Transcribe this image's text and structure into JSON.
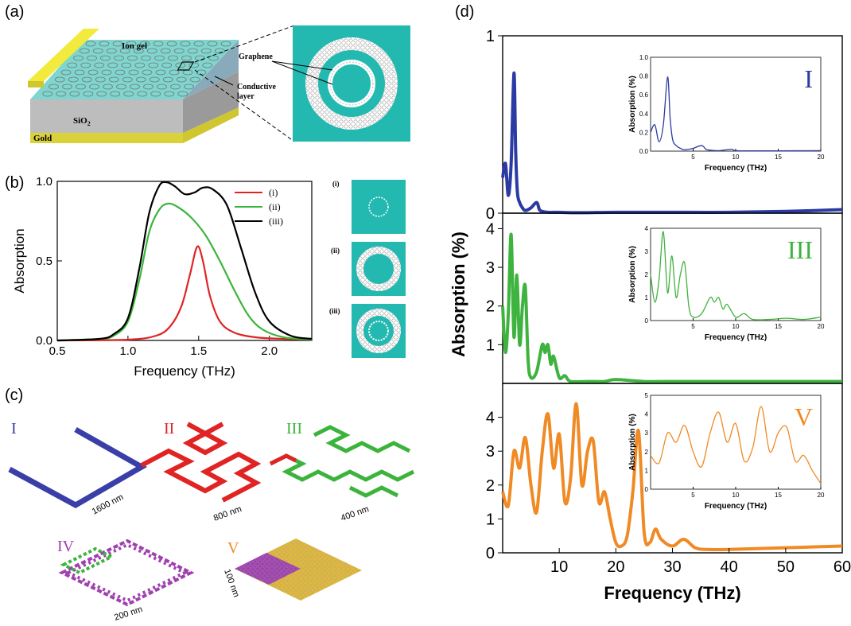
{
  "panels": {
    "a": {
      "label": "(a)",
      "layers": {
        "top": "Ion gel",
        "mid": "SiO",
        "mid_sub": "2",
        "bottom": "Gold"
      },
      "callouts": {
        "graphene": "Graphene",
        "conductive1": "Conductive",
        "conductive2": "layer"
      },
      "colors": {
        "teal": "#23b9b0",
        "gold": "#e8e040",
        "gray": "#c9c9c9"
      }
    },
    "b": {
      "label": "(b)",
      "thumb_labels": [
        "(i)",
        "(ii)",
        "(iii)"
      ],
      "chart_data": {
        "type": "line",
        "xlabel": "Frequency (THz)",
        "ylabel": "Absorption",
        "xlim": [
          0.5,
          2.3
        ],
        "ylim": [
          0,
          1.0
        ],
        "xticks": [
          "0.5",
          "1.0",
          "1.5",
          "2.0"
        ],
        "yticks": [
          "0.0",
          "0.5",
          "1.0"
        ],
        "legend_position": "top-right",
        "series": [
          {
            "name": "(i)",
            "color": "#e02424",
            "x": [
              0.5,
              1.0,
              1.2,
              1.3,
              1.38,
              1.44,
              1.49,
              1.53,
              1.58,
              1.65,
              1.75,
              1.9,
              2.1,
              2.3
            ],
            "y": [
              0.0,
              0.005,
              0.03,
              0.09,
              0.22,
              0.42,
              0.59,
              0.5,
              0.28,
              0.12,
              0.05,
              0.02,
              0.01,
              0.005
            ]
          },
          {
            "name": "(ii)",
            "color": "#3cb43c",
            "x": [
              0.5,
              0.8,
              0.9,
              1.0,
              1.08,
              1.15,
              1.22,
              1.28,
              1.35,
              1.45,
              1.55,
              1.65,
              1.75,
              1.85,
              1.95,
              2.1,
              2.3
            ],
            "y": [
              0.0,
              0.01,
              0.03,
              0.12,
              0.38,
              0.68,
              0.82,
              0.86,
              0.84,
              0.77,
              0.66,
              0.5,
              0.32,
              0.16,
              0.07,
              0.02,
              0.005
            ]
          },
          {
            "name": "(iii)",
            "color": "#000000",
            "x": [
              0.5,
              0.8,
              0.9,
              1.0,
              1.08,
              1.15,
              1.22,
              1.27,
              1.33,
              1.4,
              1.47,
              1.53,
              1.6,
              1.7,
              1.8,
              1.9,
              2.0,
              2.15,
              2.3
            ],
            "y": [
              0.0,
              0.01,
              0.04,
              0.14,
              0.45,
              0.8,
              0.97,
              0.995,
              0.97,
              0.92,
              0.93,
              0.96,
              0.95,
              0.85,
              0.58,
              0.3,
              0.12,
              0.03,
              0.01
            ]
          }
        ]
      }
    },
    "c": {
      "label": "(c)",
      "items": [
        {
          "roman": "I",
          "color": "#3a3fa8",
          "dim": "1600 nm"
        },
        {
          "roman": "II",
          "color": "#e02424",
          "dim": "800 nm"
        },
        {
          "roman": "III",
          "color": "#3cb43c",
          "dim": "400 nm"
        },
        {
          "roman": "IV",
          "color": "#a040b0",
          "dim": "200 nm"
        },
        {
          "roman": "V",
          "color": "#f08a24",
          "dim": "100 nm"
        }
      ]
    },
    "d": {
      "label": "(d)",
      "ylabel": "Absorption (%)",
      "xlabel": "Frequency (THz)",
      "xticks": [
        "10",
        "20",
        "30",
        "40",
        "50",
        "60"
      ],
      "chart_data": [
        {
          "type": "line",
          "series_label": "I",
          "color": "#2b3ba3",
          "xlim": [
            0,
            60
          ],
          "ylim": [
            0,
            1
          ],
          "yticks": [
            "0",
            "1"
          ],
          "x": [
            0,
            0.5,
            1.0,
            1.5,
            2.0,
            2.3,
            2.6,
            3.0,
            3.5,
            4.0,
            5.0,
            6.0,
            6.5,
            7.0,
            8.0,
            10,
            12,
            15,
            20,
            30,
            40,
            50,
            60
          ],
          "y": [
            0.2,
            0.28,
            0.1,
            0.28,
            0.79,
            0.35,
            0.12,
            0.06,
            0.03,
            0.015,
            0.03,
            0.06,
            0.02,
            0.01,
            0.005,
            0.005,
            0.003,
            0.003,
            0.005,
            0.005,
            0.005,
            0.01,
            0.02
          ],
          "inset": {
            "series_label": "I",
            "xlabel": "Frequency (THz)",
            "ylabel": "Absorption (%)",
            "xlim": [
              0,
              20
            ],
            "ylim": [
              0,
              1.0
            ],
            "xticks": [
              "5",
              "10",
              "15",
              "20"
            ],
            "yticks": [
              "0.0",
              "0.2",
              "0.4",
              "0.6",
              "0.8",
              "1.0"
            ],
            "x": [
              0,
              0.5,
              1.0,
              1.5,
              2.0,
              2.3,
              2.6,
              3.0,
              3.5,
              4.0,
              5.0,
              6.0,
              6.5,
              7.0,
              8.0,
              9.5,
              10,
              12,
              15,
              20
            ],
            "y": [
              0.2,
              0.28,
              0.1,
              0.28,
              0.79,
              0.35,
              0.12,
              0.06,
              0.03,
              0.015,
              0.03,
              0.06,
              0.02,
              0.01,
              0.005,
              0.02,
              0.005,
              0.003,
              0.003,
              0.005
            ]
          }
        },
        {
          "type": "line",
          "series_label": "III",
          "color": "#3fb33f",
          "xlim": [
            0,
            60
          ],
          "ylim": [
            0,
            4.4
          ],
          "yticks": [
            "1",
            "2",
            "3",
            "4"
          ],
          "x": [
            0,
            0.5,
            1.0,
            1.5,
            2.0,
            2.5,
            3.0,
            3.5,
            4.0,
            4.5,
            5.0,
            6.0,
            7.0,
            7.5,
            8.0,
            8.5,
            9.0,
            10,
            11,
            12,
            15,
            18,
            20,
            25,
            30,
            40,
            50,
            60
          ],
          "y": [
            2.0,
            0.8,
            1.8,
            3.85,
            1.2,
            2.8,
            1.0,
            2.0,
            2.5,
            0.6,
            0.15,
            0.3,
            1.0,
            0.8,
            1.0,
            0.5,
            0.7,
            0.15,
            0.2,
            0.05,
            0.05,
            0.05,
            0.1,
            0.05,
            0.05,
            0.05,
            0.05,
            0.05
          ],
          "inset": {
            "series_label": "III",
            "xlabel": "Frequency (THz)",
            "ylabel": "Absorption (%)",
            "xlim": [
              0,
              20
            ],
            "ylim": [
              0,
              4
            ],
            "xticks": [
              "5",
              "10",
              "15",
              "20"
            ],
            "yticks": [
              "0",
              "1",
              "2",
              "3",
              "4"
            ],
            "x": [
              0,
              0.5,
              1.0,
              1.5,
              2.0,
              2.5,
              3.0,
              3.5,
              4.0,
              4.5,
              5.0,
              6.0,
              7.0,
              7.5,
              8.0,
              8.5,
              9.0,
              10,
              11,
              12,
              14,
              16,
              18,
              20
            ],
            "y": [
              2.0,
              0.8,
              1.8,
              3.85,
              1.2,
              2.8,
              1.0,
              2.0,
              2.5,
              0.6,
              0.15,
              0.3,
              1.0,
              0.8,
              1.0,
              0.5,
              0.7,
              0.15,
              0.3,
              0.05,
              0.05,
              0.1,
              0.05,
              0.15
            ]
          }
        },
        {
          "type": "line",
          "series_label": "V",
          "color": "#f08a24",
          "xlim": [
            0,
            60
          ],
          "ylim": [
            0,
            5
          ],
          "yticks": [
            "0",
            "1",
            "2",
            "3",
            "4"
          ],
          "x": [
            0,
            1,
            2,
            3,
            4,
            5,
            6,
            7,
            8,
            9,
            10,
            11,
            12,
            13,
            14,
            15,
            16,
            17,
            18,
            19,
            20,
            21,
            22,
            23,
            24,
            25,
            26,
            27,
            28,
            30,
            32,
            34,
            36,
            40,
            50,
            60
          ],
          "y": [
            1.8,
            1.4,
            3.0,
            2.5,
            3.4,
            2.0,
            1.2,
            3.0,
            4.1,
            2.5,
            3.5,
            1.5,
            2.2,
            4.4,
            2.0,
            3.0,
            3.3,
            1.5,
            1.8,
            1.0,
            0.3,
            0.2,
            0.5,
            1.8,
            3.6,
            0.6,
            0.3,
            0.7,
            0.4,
            0.2,
            0.4,
            0.15,
            0.1,
            0.1,
            0.15,
            0.2
          ],
          "inset": {
            "series_label": "V",
            "xlabel": "Frequency (THz)",
            "ylabel": "Absorption (%)",
            "xlim": [
              0,
              20
            ],
            "ylim": [
              0,
              5
            ],
            "xticks": [
              "5",
              "10",
              "15",
              "20"
            ],
            "yticks": [
              "0",
              "1",
              "2",
              "3",
              "4",
              "5"
            ],
            "x": [
              0,
              1,
              2,
              3,
              4,
              5,
              6,
              7,
              8,
              9,
              10,
              11,
              12,
              13,
              14,
              15,
              16,
              17,
              18,
              19,
              20
            ],
            "y": [
              1.8,
              1.4,
              3.0,
              2.5,
              3.4,
              2.0,
              1.2,
              3.0,
              4.1,
              2.5,
              3.5,
              1.5,
              2.2,
              4.4,
              2.0,
              3.0,
              3.3,
              1.5,
              1.8,
              1.0,
              0.3
            ]
          }
        }
      ]
    }
  }
}
